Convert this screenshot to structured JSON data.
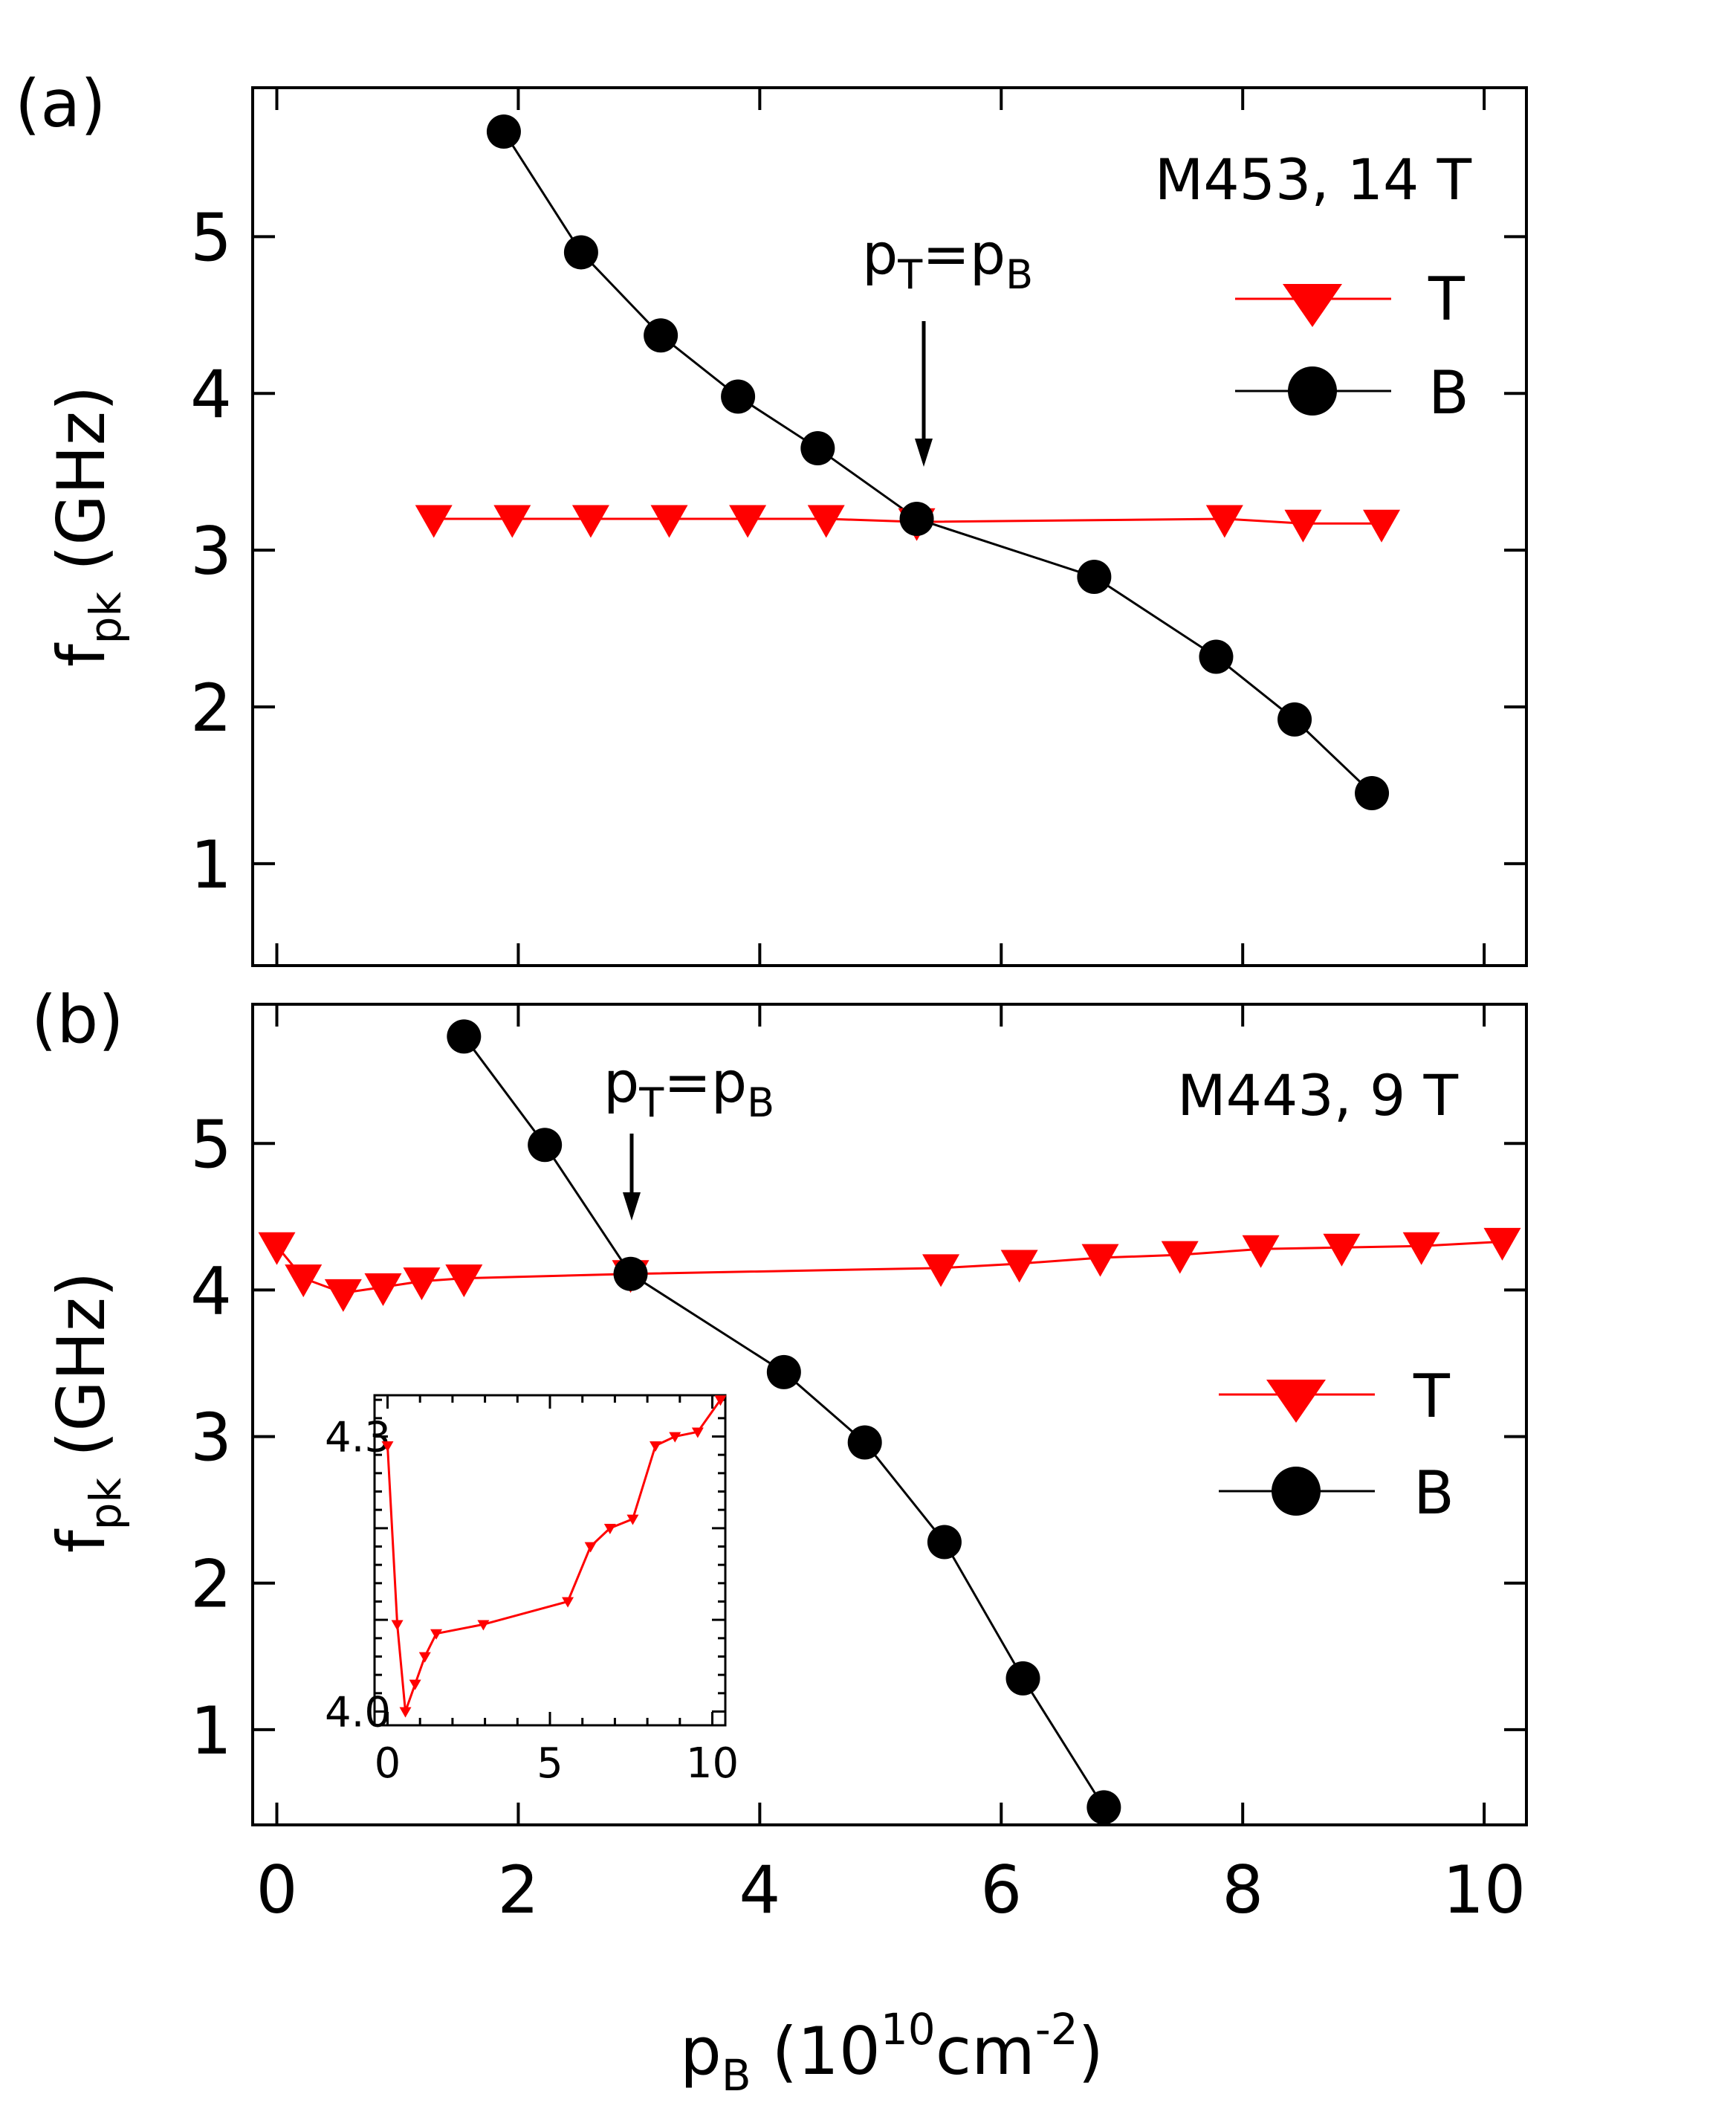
{
  "colors": {
    "T": "#ff0000",
    "B": "#000000",
    "axis": "#000000"
  },
  "chart_data": [
    {
      "type": "line",
      "panel_label": "(a)",
      "sample_label": "M453, 14 T",
      "annotation": {
        "text_base": "p",
        "sub1": "T",
        "mid": "=p",
        "sub2": "B",
        "x": 5.3
      },
      "ylabel": {
        "base": "f",
        "sub": "pk",
        "rest": " (GHz)"
      },
      "xlim": [
        -0.2,
        10.35
      ],
      "ylim": [
        0.35,
        5.95
      ],
      "yticks": [
        1,
        2,
        3,
        4,
        5
      ],
      "xticks": [
        0,
        2,
        4,
        6,
        8,
        10
      ],
      "legend_position": "top-right",
      "series": [
        {
          "name": "T",
          "marker": "triangle-down",
          "x": [
            1.3,
            1.95,
            2.6,
            3.25,
            3.9,
            4.55,
            5.3,
            7.85,
            8.5,
            9.15
          ],
          "y": [
            3.2,
            3.2,
            3.2,
            3.2,
            3.2,
            3.2,
            3.18,
            3.2,
            3.17,
            3.17
          ]
        },
        {
          "name": "B",
          "marker": "circle",
          "x": [
            1.88,
            2.52,
            3.18,
            3.82,
            4.48,
            5.3,
            6.77,
            7.78,
            8.43,
            9.07
          ],
          "y": [
            5.67,
            4.9,
            4.37,
            3.98,
            3.65,
            3.2,
            2.83,
            2.32,
            1.92,
            1.45
          ]
        }
      ]
    },
    {
      "type": "line",
      "panel_label": "(b)",
      "sample_label": "M443, 9 T",
      "annotation": {
        "text_base": "p",
        "sub1": "T",
        "mid": "=p",
        "sub2": "B",
        "x": 2.93
      },
      "ylabel": {
        "base": "f",
        "sub": "pk",
        "rest": " (GHz)"
      },
      "xlabel": {
        "base": "p",
        "sub": "B",
        "mid": " (10",
        "sup1": "10",
        "unit": "cm",
        "sup2": "-2",
        "end": ")"
      },
      "xlim": [
        -0.2,
        10.35
      ],
      "ylim": [
        0.35,
        5.95
      ],
      "yticks": [
        1,
        2,
        3,
        4,
        5
      ],
      "xticks": [
        0,
        2,
        4,
        6,
        8,
        10
      ],
      "legend_position": "center-right",
      "series": [
        {
          "name": "T",
          "marker": "triangle-down",
          "x": [
            0.0,
            0.22,
            0.55,
            0.88,
            1.2,
            1.55,
            2.93,
            5.5,
            6.15,
            6.82,
            7.48,
            8.15,
            8.82,
            9.48,
            10.15
          ],
          "y": [
            4.3,
            4.08,
            3.98,
            4.02,
            4.06,
            4.08,
            4.11,
            4.15,
            4.18,
            4.22,
            4.24,
            4.28,
            4.29,
            4.3,
            4.33
          ]
        },
        {
          "name": "B",
          "marker": "circle",
          "x": [
            1.55,
            2.22,
            2.93,
            4.2,
            4.87,
            5.53,
            6.18,
            6.85
          ],
          "y": [
            5.73,
            4.99,
            4.11,
            3.44,
            2.96,
            2.28,
            1.35,
            0.47
          ]
        }
      ],
      "inset": {
        "type": "line",
        "xlim": [
          -0.4,
          10.4
        ],
        "ylim": [
          3.985,
          4.345
        ],
        "xticks": [
          0,
          5,
          10
        ],
        "yticks": [
          4.0,
          4.3
        ],
        "ytick_labels": [
          "4.0",
          "4.3"
        ],
        "series": [
          {
            "name": "T",
            "x": [
              0.0,
              0.3,
              0.55,
              0.85,
              1.15,
              1.5,
              2.95,
              5.55,
              6.25,
              6.85,
              7.55,
              8.25,
              8.85,
              9.55,
              10.25
            ],
            "y": [
              4.29,
              4.095,
              4.0,
              4.03,
              4.06,
              4.085,
              4.095,
              4.12,
              4.18,
              4.2,
              4.21,
              4.29,
              4.3,
              4.305,
              4.34
            ]
          }
        ]
      }
    }
  ]
}
